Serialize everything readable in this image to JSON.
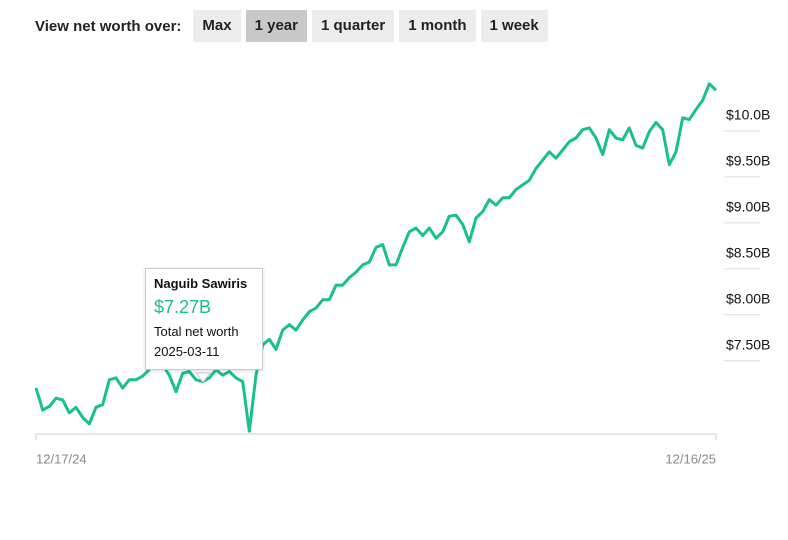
{
  "controls": {
    "label": "View net worth over:",
    "options": [
      "Max",
      "1 year",
      "1 quarter",
      "1 month",
      "1 week"
    ],
    "selected": "1 year"
  },
  "chart_data": {
    "type": "line",
    "series": [
      {
        "name": "Naguib Sawiris",
        "color": "#18c08b",
        "values": [
          7.04,
          6.8,
          6.84,
          6.93,
          6.91,
          6.77,
          6.83,
          6.72,
          6.65,
          6.83,
          6.86,
          7.13,
          7.15,
          7.04,
          7.13,
          7.13,
          7.17,
          7.24,
          7.35,
          7.29,
          7.18,
          7.0,
          7.2,
          7.22,
          7.13,
          7.11,
          7.15,
          7.24,
          7.18,
          7.22,
          7.15,
          7.11,
          6.57,
          7.18,
          7.51,
          7.57,
          7.46,
          7.67,
          7.73,
          7.67,
          7.78,
          7.87,
          7.91,
          8.0,
          8.0,
          8.16,
          8.16,
          8.24,
          8.3,
          8.38,
          8.41,
          8.57,
          8.6,
          8.38,
          8.38,
          8.57,
          8.74,
          8.78,
          8.7,
          8.78,
          8.67,
          8.74,
          8.91,
          8.92,
          8.82,
          8.63,
          8.89,
          8.96,
          9.09,
          9.03,
          9.11,
          9.11,
          9.2,
          9.25,
          9.3,
          9.43,
          9.52,
          9.61,
          9.54,
          9.63,
          9.72,
          9.76,
          9.85,
          9.87,
          9.76,
          9.58,
          9.85,
          9.76,
          9.74,
          9.87,
          9.68,
          9.65,
          9.83,
          9.93,
          9.85,
          9.47,
          9.61,
          9.98,
          9.96,
          10.07,
          10.17,
          10.35,
          10.28
        ]
      }
    ],
    "xlim": [
      0,
      102
    ],
    "xticks": [
      {
        "value": 0,
        "label": "12/17/24"
      },
      {
        "value": 102,
        "label": "12/16/25"
      }
    ],
    "ylim": [
      6.54,
      10.5
    ],
    "yticks": [
      {
        "value": 7.5,
        "label": "$7.50B"
      },
      {
        "value": 8.0,
        "label": "$8.00B"
      },
      {
        "value": 8.5,
        "label": "$8.50B"
      },
      {
        "value": 9.0,
        "label": "$9.00B"
      },
      {
        "value": 9.5,
        "label": "$9.50B"
      },
      {
        "value": 10.0,
        "label": "$10.0B"
      }
    ],
    "tooltip": {
      "name": "Naguib Sawiris",
      "value": 7.27,
      "value_label": "$7.27B",
      "caption": "Total net worth",
      "date": "2025-03-11"
    }
  }
}
